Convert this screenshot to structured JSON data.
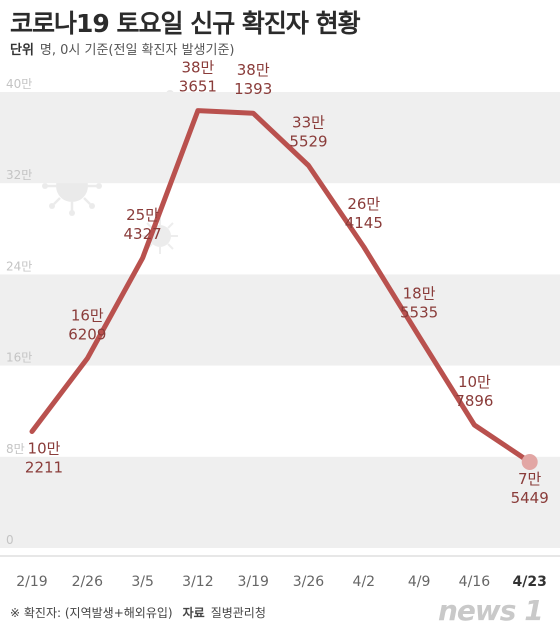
{
  "title": "코로나19 토요일 신규 확진자 현황",
  "unit_label": "단위",
  "unit_text": "명, 0시 기준(전일 확진자 발생기준)",
  "footnote": "※ 확진자: (지역발생+해외유입)",
  "source_label": "자료",
  "source_text": "질병관리청",
  "logo_text": "news 1",
  "colors": {
    "line": "#b9514e",
    "label": "#8a3c3a",
    "band": "#efefef",
    "axis_text": "#c4c4c4"
  },
  "chart_data": {
    "type": "line",
    "title": "코로나19 토요일 신규 확진자 현황",
    "categories": [
      "2/19",
      "2/26",
      "3/5",
      "3/12",
      "3/19",
      "3/26",
      "4/2",
      "4/9",
      "4/16",
      "4/23"
    ],
    "values": [
      102211,
      166209,
      254327,
      383651,
      381393,
      335529,
      264145,
      185535,
      107896,
      75449
    ],
    "value_labels": [
      [
        "10만",
        "2211"
      ],
      [
        "16만",
        "6209"
      ],
      [
        "25만",
        "4327"
      ],
      [
        "38만",
        "3651"
      ],
      [
        "38만",
        "1393"
      ],
      [
        "33만",
        "5529"
      ],
      [
        "26만",
        "4145"
      ],
      [
        "18만",
        "5535"
      ],
      [
        "10만",
        "7896"
      ],
      [
        "7만",
        "5449"
      ]
    ],
    "y_ticks": [
      0,
      80000,
      160000,
      240000,
      320000,
      400000
    ],
    "y_tick_labels": [
      "0",
      "8만",
      "16만",
      "24만",
      "32만",
      "40만"
    ],
    "ylim": [
      0,
      400000
    ],
    "highlight_last": true
  }
}
